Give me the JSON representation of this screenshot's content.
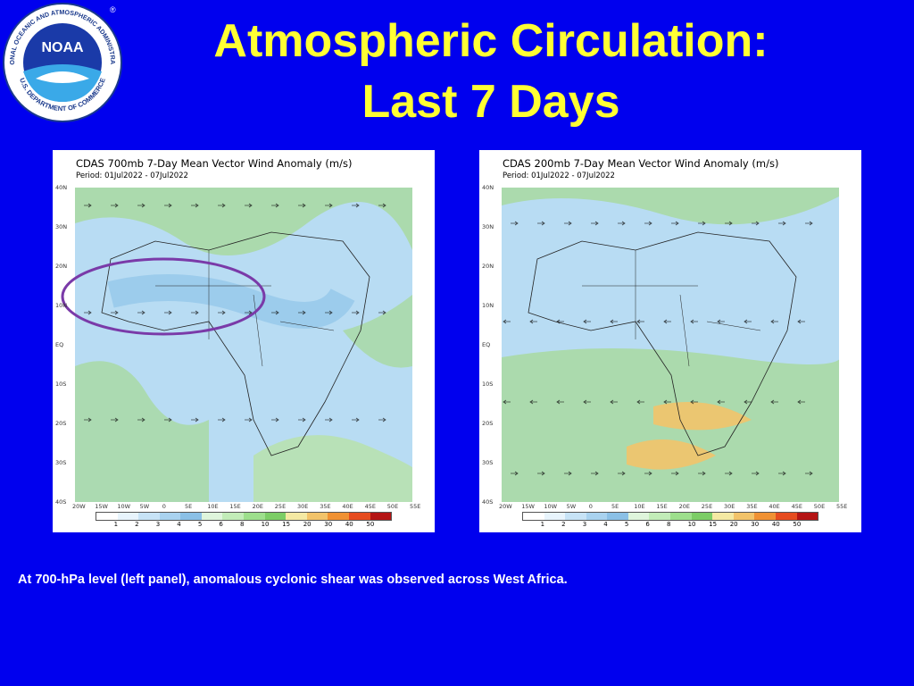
{
  "slide": {
    "title_line1": "Atmospheric Circulation:",
    "title_line2": "Last 7 Days",
    "caption": "At 700-hPa level (left panel), anomalous cyclonic shear was observed across West Africa."
  },
  "logo": {
    "text": "NOAA",
    "ring_text_top": "NATIONAL OCEANIC AND ATMOSPHERIC ADMINISTRATION",
    "ring_text_bottom": "U.S. DEPARTMENT OF COMMERCE",
    "registered": "®"
  },
  "panels": [
    {
      "title": "CDAS 700mb 7-Day Mean Vector Wind Anomaly (m/s)",
      "period": "Period: 01Jul2022 - 07Jul2022"
    },
    {
      "title": "CDAS 200mb 7-Day Mean Vector Wind Anomaly (m/s)",
      "period": "Period: 01Jul2022 - 07Jul2022"
    }
  ],
  "lat_labels": [
    "40N",
    "30N",
    "20N",
    "10N",
    "EQ",
    "10S",
    "20S",
    "30S",
    "40S"
  ],
  "lon_labels": [
    "20W",
    "15W",
    "10W",
    "5W",
    "0",
    "5E",
    "10E",
    "15E",
    "20E",
    "25E",
    "30E",
    "35E",
    "40E",
    "45E",
    "50E",
    "55E"
  ],
  "colorbar_labels": [
    "1",
    "2",
    "3",
    "4",
    "5",
    "6",
    "8",
    "10",
    "15",
    "20",
    "30",
    "40",
    "50"
  ],
  "colorbar_colors": [
    "#ffffff",
    "#e8f4fc",
    "#c7e3f6",
    "#a9d2ef",
    "#8bc0e6",
    "#dff5dc",
    "#c2ecb8",
    "#9ddf8c",
    "#7ccd66",
    "#f4e9a3",
    "#f2c36a",
    "#f09133",
    "#e64c1f",
    "#b41414"
  ]
}
